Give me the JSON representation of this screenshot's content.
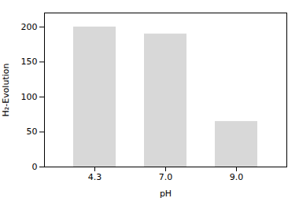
{
  "chart_data": {
    "type": "bar",
    "categories": [
      "4.3",
      "7.0",
      "9.0"
    ],
    "values": [
      200,
      190,
      65
    ],
    "color": "#d8d8d8",
    "xlabel": "pH",
    "ylabel": "H₂-Evolution",
    "ylim": [
      0,
      220
    ],
    "yticks": [
      0,
      50,
      100,
      150,
      200
    ],
    "grid": false
  }
}
